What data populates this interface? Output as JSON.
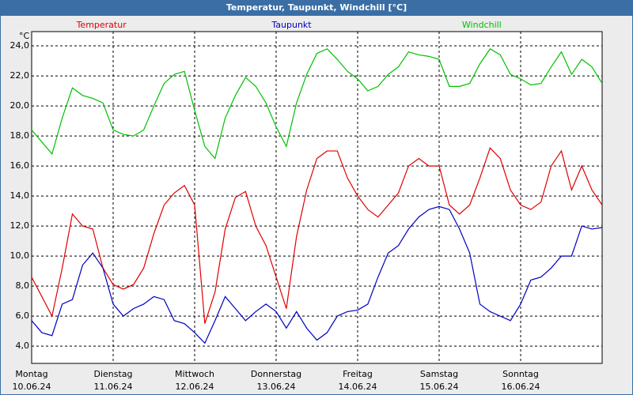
{
  "chart_data": {
    "type": "line",
    "title": "Temperatur, Taupunkt, Windchill [°C]",
    "ylabel": "°C",
    "x": [
      0,
      3,
      6,
      9,
      12,
      15,
      18,
      21,
      24,
      27,
      30,
      33,
      36,
      39,
      42,
      45,
      48,
      51,
      54,
      57,
      60,
      63,
      66,
      69,
      72,
      75,
      78,
      81,
      84,
      87,
      90,
      93,
      96,
      99,
      102,
      105,
      108,
      111,
      114,
      117,
      120,
      123,
      126,
      129,
      132,
      135,
      138,
      141,
      144,
      147,
      150,
      153,
      156,
      159,
      162,
      165,
      168
    ],
    "xlim": [
      0,
      168
    ],
    "xticks": [
      {
        "value": 0,
        "label": "Montag",
        "date": "10.06.24"
      },
      {
        "value": 24,
        "label": "Dienstag",
        "date": "11.06.24"
      },
      {
        "value": 48,
        "label": "Mittwoch",
        "date": "12.06.24"
      },
      {
        "value": 72,
        "label": "Donnerstag",
        "date": "13.06.24"
      },
      {
        "value": 96,
        "label": "Freitag",
        "date": "14.06.24"
      },
      {
        "value": 120,
        "label": "Samstag",
        "date": "15.06.24"
      },
      {
        "value": 144,
        "label": "Sonntag",
        "date": "16.06.24"
      }
    ],
    "ylim": [
      2.85,
      24.95
    ],
    "yticks": [
      {
        "value": 4,
        "label": "4,0"
      },
      {
        "value": 6,
        "label": "6,0"
      },
      {
        "value": 8,
        "label": "8,0"
      },
      {
        "value": 10,
        "label": "10,0"
      },
      {
        "value": 12,
        "label": "12,0"
      },
      {
        "value": 14,
        "label": "14,0"
      },
      {
        "value": 16,
        "label": "16,0"
      },
      {
        "value": 18,
        "label": "18,0"
      },
      {
        "value": 20,
        "label": "20,0"
      },
      {
        "value": 22,
        "label": "22,0"
      },
      {
        "value": 24,
        "label": "24,0"
      }
    ],
    "grid": true,
    "series": [
      {
        "name": "Temperatur",
        "color": "#e00000",
        "values": [
          8.6,
          7.3,
          6.0,
          9.2,
          12.8,
          12.0,
          11.8,
          9.2,
          8.1,
          7.8,
          8.1,
          9.2,
          11.5,
          13.4,
          14.2,
          14.7,
          13.4,
          5.5,
          7.6,
          11.8,
          13.9,
          14.3,
          12.0,
          10.7,
          8.6,
          6.5,
          11.3,
          14.4,
          16.5,
          17.0,
          17.0,
          15.2,
          14.0,
          13.1,
          12.6,
          13.4,
          14.2,
          16.0,
          16.5,
          16.0,
          16.0,
          13.4,
          12.8,
          13.4,
          15.2,
          17.2,
          16.5,
          14.4,
          13.4,
          13.1,
          13.6,
          16.0,
          17.0,
          14.4,
          16.0,
          14.4,
          13.4
        ]
      },
      {
        "name": "Taupunkt",
        "color": "#0000c0",
        "values": [
          5.7,
          4.9,
          4.7,
          6.8,
          7.1,
          9.4,
          10.2,
          9.2,
          6.8,
          6.0,
          6.5,
          6.8,
          7.3,
          7.1,
          5.7,
          5.5,
          4.9,
          4.2,
          5.7,
          7.3,
          6.5,
          5.7,
          6.3,
          6.8,
          6.3,
          5.2,
          6.3,
          5.2,
          4.4,
          4.9,
          6.0,
          6.3,
          6.4,
          6.8,
          8.6,
          10.2,
          10.7,
          11.8,
          12.6,
          13.1,
          13.3,
          13.1,
          11.8,
          10.2,
          6.8,
          6.3,
          6.0,
          5.7,
          6.8,
          8.4,
          8.6,
          9.2,
          10.0,
          10.0,
          12.0,
          11.8,
          11.9
        ]
      },
      {
        "name": "Windchill",
        "color": "#00c000",
        "values": [
          18.4,
          17.6,
          16.8,
          19.2,
          21.2,
          20.7,
          20.5,
          20.2,
          18.4,
          18.1,
          18.0,
          18.4,
          20.0,
          21.5,
          22.1,
          22.3,
          19.7,
          17.3,
          16.5,
          19.2,
          20.7,
          21.9,
          21.3,
          20.2,
          18.6,
          17.3,
          20.2,
          22.1,
          23.5,
          23.8,
          23.1,
          22.3,
          21.8,
          21.0,
          21.3,
          22.1,
          22.6,
          23.6,
          23.4,
          23.3,
          23.1,
          21.3,
          21.3,
          21.5,
          22.8,
          23.8,
          23.4,
          22.1,
          21.8,
          21.4,
          21.5,
          22.6,
          23.6,
          22.1,
          23.1,
          22.6,
          21.5
        ]
      }
    ]
  }
}
